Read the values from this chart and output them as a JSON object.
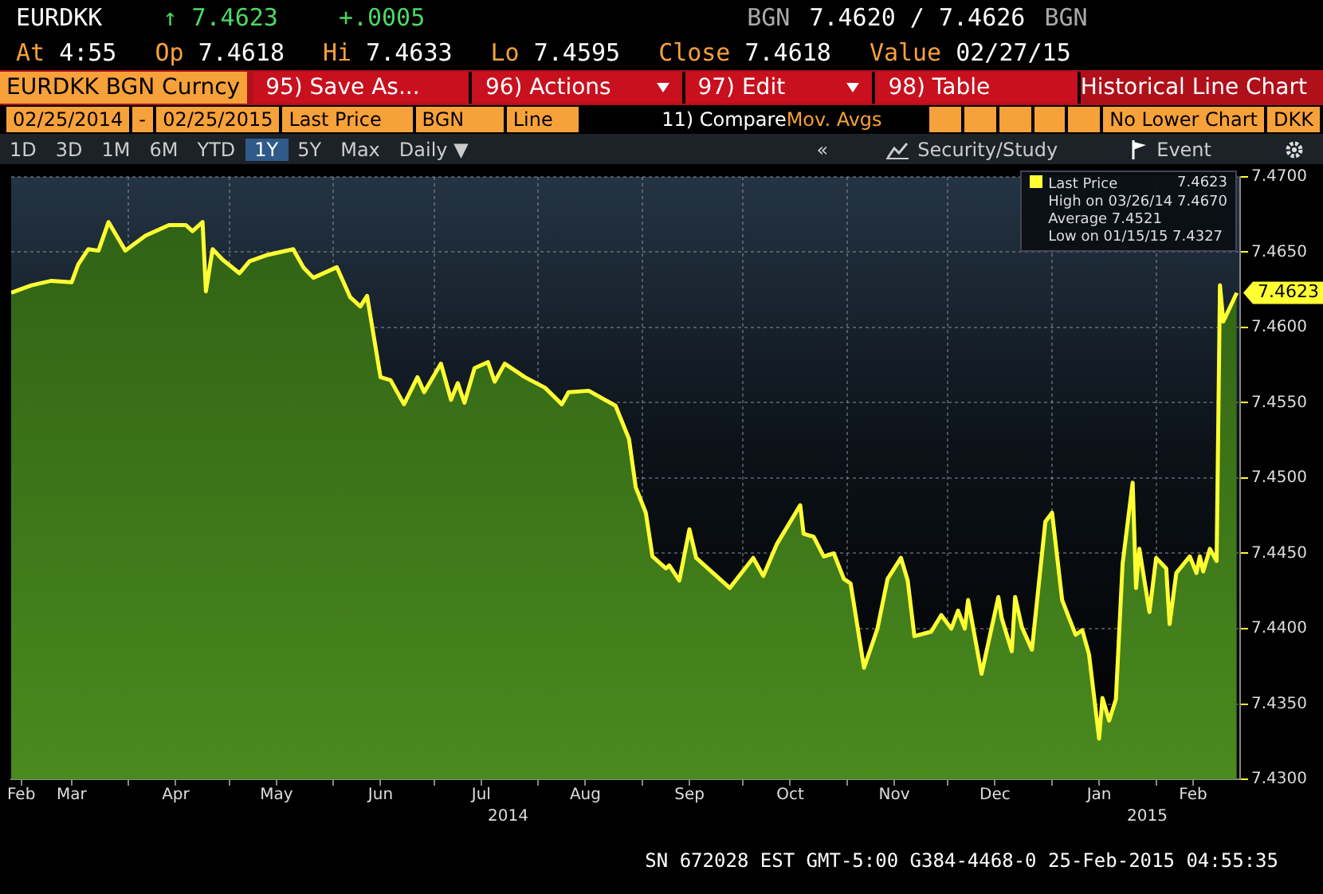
{
  "chart_data": {
    "type": "area",
    "title": "EURDKK BGN Curncy",
    "x": [
      "2014-02-25",
      "2014-03-03",
      "2014-03-09",
      "2014-03-15",
      "2014-03-17",
      "2014-03-20",
      "2014-03-23",
      "2014-03-26",
      "2014-03-31",
      "2014-04-06",
      "2014-04-13",
      "2014-04-18",
      "2014-04-20",
      "2014-04-23",
      "2014-04-24",
      "2014-04-26",
      "2014-04-29",
      "2014-05-04",
      "2014-05-07",
      "2014-05-12",
      "2014-05-20",
      "2014-05-23",
      "2014-05-26",
      "2014-06-02",
      "2014-06-06",
      "2014-06-09",
      "2014-06-11",
      "2014-06-15",
      "2014-06-18",
      "2014-06-22",
      "2014-06-26",
      "2014-06-28",
      "2014-07-03",
      "2014-07-06",
      "2014-07-08",
      "2014-07-10",
      "2014-07-13",
      "2014-07-17",
      "2014-07-19",
      "2014-07-22",
      "2014-07-28",
      "2014-08-03",
      "2014-08-08",
      "2014-08-10",
      "2014-08-16",
      "2014-08-24",
      "2014-08-28",
      "2014-08-30",
      "2014-09-02",
      "2014-09-04",
      "2014-09-08",
      "2014-09-09",
      "2014-09-12",
      "2014-09-15",
      "2014-09-17",
      "2014-09-27",
      "2014-10-04",
      "2014-10-07",
      "2014-10-11",
      "2014-10-18",
      "2014-10-19",
      "2014-10-22",
      "2014-10-25",
      "2014-10-28",
      "2014-10-31",
      "2014-11-02",
      "2014-11-06",
      "2014-11-10",
      "2014-11-13",
      "2014-11-17",
      "2014-11-19",
      "2014-11-21",
      "2014-11-26",
      "2014-11-29",
      "2014-12-02",
      "2014-12-04",
      "2014-12-06",
      "2014-12-07",
      "2014-12-11",
      "2014-12-16",
      "2014-12-17",
      "2014-12-20",
      "2014-12-21",
      "2014-12-23",
      "2014-12-26",
      "2014-12-30",
      "2015-01-01",
      "2015-01-04",
      "2015-01-08",
      "2015-01-10",
      "2015-01-12",
      "2015-01-15",
      "2015-01-16",
      "2015-01-18",
      "2015-01-20",
      "2015-01-22",
      "2015-01-25",
      "2015-01-26",
      "2015-01-27",
      "2015-01-30",
      "2015-02-01",
      "2015-02-04",
      "2015-02-05",
      "2015-02-07",
      "2015-02-11",
      "2015-02-13",
      "2015-02-14",
      "2015-02-15",
      "2015-02-17",
      "2015-02-19",
      "2015-02-20",
      "2015-02-21",
      "2015-02-25"
    ],
    "series": [
      {
        "name": "Last Price",
        "color": "#ffff33",
        "values": [
          7.4623,
          7.4628,
          7.4631,
          7.463,
          7.4642,
          7.4652,
          7.4651,
          7.467,
          7.4651,
          7.4661,
          7.4668,
          7.4668,
          7.4664,
          7.467,
          7.4624,
          7.4652,
          7.4645,
          7.4636,
          7.4644,
          7.4648,
          7.4652,
          7.464,
          7.4633,
          7.464,
          7.462,
          7.4614,
          7.4621,
          7.4567,
          7.4565,
          7.4549,
          7.4567,
          7.4557,
          7.4576,
          7.4552,
          7.4563,
          7.455,
          7.4573,
          7.4577,
          7.4564,
          7.4576,
          7.4567,
          7.456,
          7.4549,
          7.4557,
          7.4558,
          7.4548,
          7.4526,
          7.4494,
          7.4477,
          7.4448,
          7.444,
          7.4442,
          7.4432,
          7.4466,
          7.4447,
          7.4427,
          7.4447,
          7.4435,
          7.4456,
          7.4482,
          7.4463,
          7.4461,
          7.4448,
          7.445,
          7.4433,
          7.443,
          7.4374,
          7.44,
          7.4433,
          7.4447,
          7.4432,
          7.4395,
          7.4398,
          7.4409,
          7.44,
          7.4412,
          7.44,
          7.4419,
          7.437,
          7.4421,
          7.4407,
          7.4385,
          7.4421,
          7.4401,
          7.4386,
          7.4471,
          7.4477,
          7.4419,
          7.4396,
          7.4399,
          7.4383,
          7.4327,
          7.4354,
          7.4339,
          7.4353,
          7.4443,
          7.4497,
          7.4427,
          7.4453,
          7.4411,
          7.4447,
          7.444,
          7.4403,
          7.4437,
          7.4448,
          7.4437,
          7.4448,
          7.4438,
          7.4453,
          7.4445,
          7.4628,
          7.4604,
          7.4623
        ],
        "value_labels": [
          null,
          null,
          null,
          null,
          null,
          null,
          null,
          null,
          null,
          null,
          null,
          null,
          null,
          null,
          null,
          null,
          null,
          null,
          null,
          null,
          null,
          null,
          null,
          null,
          null,
          null,
          null,
          null,
          null,
          null,
          null,
          null,
          null,
          null,
          null,
          null,
          null,
          null,
          null,
          null,
          null,
          null,
          null,
          null,
          null,
          null,
          null,
          null,
          null,
          null,
          null,
          null,
          null,
          null,
          null,
          null,
          null,
          null,
          null,
          null,
          null,
          null,
          null,
          null,
          null,
          null,
          null,
          null,
          null,
          null,
          null,
          null,
          null,
          null,
          null,
          null,
          null,
          null,
          null,
          null,
          null,
          null,
          null,
          null,
          null,
          null,
          null,
          null,
          null,
          null,
          null,
          null,
          null,
          null,
          null,
          null,
          null,
          null,
          null,
          null,
          null,
          null,
          null,
          null,
          null,
          null,
          null,
          null,
          null,
          null,
          null,
          null,
          "7.4623"
        ]
      }
    ],
    "xlim": [
      "2014-02-25",
      "2015-02-26"
    ],
    "xticks": [
      {
        "value": "2014-02-28",
        "label": "Feb"
      },
      {
        "value": "2014-03-15",
        "label": "Mar"
      },
      {
        "value": "2014-04-01",
        "label": null
      },
      {
        "value": "2014-04-15",
        "label": "Apr"
      },
      {
        "value": "2014-05-01",
        "label": null
      },
      {
        "value": "2014-05-15",
        "label": "May"
      },
      {
        "value": "2014-06-01",
        "label": null
      },
      {
        "value": "2014-06-15",
        "label": "Jun"
      },
      {
        "value": "2014-07-01",
        "label": null
      },
      {
        "value": "2014-07-15",
        "label": "Jul"
      },
      {
        "value": "2014-08-01",
        "label": null
      },
      {
        "value": "2014-08-15",
        "label": "Aug"
      },
      {
        "value": "2014-09-01",
        "label": null
      },
      {
        "value": "2014-09-15",
        "label": "Sep"
      },
      {
        "value": "2014-10-01",
        "label": null
      },
      {
        "value": "2014-10-15",
        "label": "Oct"
      },
      {
        "value": "2014-11-01",
        "label": null
      },
      {
        "value": "2014-11-15",
        "label": "Nov"
      },
      {
        "value": "2014-12-01",
        "label": null
      },
      {
        "value": "2014-12-15",
        "label": "Dec"
      },
      {
        "value": "2015-01-01",
        "label": null
      },
      {
        "value": "2015-01-15",
        "label": "Jan"
      },
      {
        "value": "2015-02-01",
        "label": null
      },
      {
        "value": "2015-02-12",
        "label": "Feb"
      }
    ],
    "ylim": [
      7.43,
      7.47
    ],
    "yticks": [
      {
        "value": 7.43,
        "label": "7.4300"
      },
      {
        "value": 7.435,
        "label": "7.4350"
      },
      {
        "value": 7.44,
        "label": "7.4400"
      },
      {
        "value": 7.445,
        "label": "7.4450"
      },
      {
        "value": 7.45,
        "label": "7.4500"
      },
      {
        "value": 7.455,
        "label": "7.4550"
      },
      {
        "value": 7.46,
        "label": "7.4600"
      },
      {
        "value": 7.465,
        "label": "7.4650"
      },
      {
        "value": 7.47,
        "label": "7.4700"
      }
    ],
    "grid": true,
    "legend": "top right",
    "marker": "none",
    "line_style": "solid",
    "annotations": [
      "EURDKK",
      "↑ 7.4623",
      "+.0005",
      "BGN",
      "7.4620 / 7.4626",
      "BGN",
      "At 4:55",
      "Op 7.4618",
      "Hi 7.4633",
      "Lo 7.4595",
      "Close 7.4618",
      "Value 02/27/15",
      "95) Save As...",
      "96) Actions",
      "97) Edit",
      "98) Table",
      "Historical Line Chart",
      "02/25/2014",
      "-",
      "02/25/2015",
      "Last Price",
      "BGN",
      "Line",
      "11) Compare",
      "Mov. Avgs",
      "No Lower Chart",
      "DKK",
      "1D",
      "3D",
      "1M",
      "6M",
      "YTD",
      "1Y",
      "5Y",
      "Max",
      "Daily ▼",
      "«",
      "Security/Study",
      "Event",
      "SN 672028 EST GMT-5:00 G384-4468-0 25-Feb-2015 04:55:35",
      "7.4623",
      "High on 03/26/14 7.4670",
      "Average 7.4521",
      "Low on 01/15/15 7.4327",
      "2014",
      "2015"
    ]
  }
}
